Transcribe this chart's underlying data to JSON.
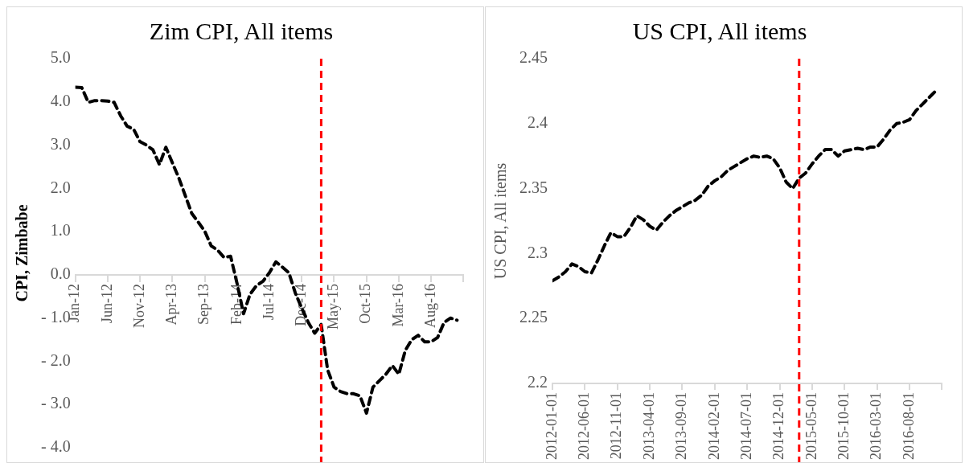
{
  "chart_data": [
    {
      "type": "line",
      "title": "Zim CPI, All items",
      "ylabel": "CPI, Zimbabe",
      "marker": "none",
      "line_style": "dashed",
      "x": [
        "2012-01",
        "2012-02",
        "2012-03",
        "2012-04",
        "2012-05",
        "2012-06",
        "2012-07",
        "2012-08",
        "2012-09",
        "2012-10",
        "2012-11",
        "2012-12",
        "2013-01",
        "2013-02",
        "2013-03",
        "2013-04",
        "2013-05",
        "2013-06",
        "2013-07",
        "2013-08",
        "2013-09",
        "2013-10",
        "2013-11",
        "2013-12",
        "2014-01",
        "2014-02",
        "2014-03",
        "2014-04",
        "2014-05",
        "2014-06",
        "2014-07",
        "2014-08",
        "2014-09",
        "2014-10",
        "2014-11",
        "2014-12",
        "2015-01",
        "2015-02",
        "2015-03",
        "2015-04",
        "2015-05",
        "2015-06",
        "2015-07",
        "2015-08",
        "2015-09",
        "2015-10",
        "2015-11",
        "2015-12",
        "2016-01",
        "2016-02",
        "2016-03",
        "2016-04",
        "2016-05",
        "2016-06",
        "2016-07",
        "2016-08",
        "2016-09",
        "2016-10",
        "2016-11",
        "2016-12"
      ],
      "series": [
        {
          "color": "#000000",
          "values": [
            4.34,
            4.33,
            3.99,
            4.03,
            4.03,
            4.02,
            3.99,
            3.68,
            3.44,
            3.37,
            3.08,
            3.0,
            2.89,
            2.55,
            2.95,
            2.59,
            2.24,
            1.83,
            1.42,
            1.22,
            1.01,
            0.67,
            0.57,
            0.4,
            0.43,
            -0.2,
            -0.9,
            -0.45,
            -0.25,
            -0.15,
            0.05,
            0.3,
            0.18,
            0.05,
            -0.42,
            -0.77,
            -1.1,
            -1.35,
            -1.15,
            -2.2,
            -2.6,
            -2.7,
            -2.75,
            -2.75,
            -2.8,
            -3.2,
            -2.6,
            -2.45,
            -2.3,
            -2.1,
            -2.3,
            -1.75,
            -1.5,
            -1.4,
            -1.55,
            -1.55,
            -1.45,
            -1.1,
            -1.0,
            -1.05
          ]
        }
      ],
      "xlim": [
        "2012-01",
        "2017-01"
      ],
      "xticks": [
        {
          "value": "2012-01",
          "label": "Jan-12"
        },
        {
          "value": "2012-06",
          "label": "Jun-12"
        },
        {
          "value": "2012-11",
          "label": "Nov-12"
        },
        {
          "value": "2013-04",
          "label": "Apr-13"
        },
        {
          "value": "2013-09",
          "label": "Sep-13"
        },
        {
          "value": "2014-02",
          "label": "Feb-14"
        },
        {
          "value": "2014-07",
          "label": "Jul-14"
        },
        {
          "value": "2014-12",
          "label": "Dec-14"
        },
        {
          "value": "2015-05",
          "label": "May-15"
        },
        {
          "value": "2015-10",
          "label": "Oct-15"
        },
        {
          "value": "2016-03",
          "label": "Mar-16"
        },
        {
          "value": "2016-08",
          "label": "Aug-16"
        },
        {
          "value": "2017-01",
          "label": null
        }
      ],
      "ylim": [
        -4,
        5
      ],
      "yticks": [
        {
          "value": 5,
          "label": "5.0"
        },
        {
          "value": 4,
          "label": "4.0"
        },
        {
          "value": 3,
          "label": "3.0"
        },
        {
          "value": 2,
          "label": "2.0"
        },
        {
          "value": 1,
          "label": "1.0"
        },
        {
          "value": 0,
          "label": "0.0"
        },
        {
          "value": -1,
          "label": "- 1.0"
        },
        {
          "value": -2,
          "label": "- 2.0"
        },
        {
          "value": -3,
          "label": "- 3.0"
        },
        {
          "value": -4,
          "label": "- 4.0"
        }
      ],
      "ref_lines": [
        {
          "axis": "x",
          "value": "2015-03",
          "color": "#ff0000",
          "line_style": "dashed"
        }
      ]
    },
    {
      "type": "line",
      "title": "US CPI, All items",
      "ylabel": "US CPI, All items",
      "marker": "none",
      "line_style": "dashed",
      "x": [
        "2012-01-01",
        "2012-02-01",
        "2012-03-01",
        "2012-04-01",
        "2012-05-01",
        "2012-06-01",
        "2012-07-01",
        "2012-08-01",
        "2012-09-01",
        "2012-10-01",
        "2012-11-01",
        "2012-12-01",
        "2013-01-01",
        "2013-02-01",
        "2013-03-01",
        "2013-04-01",
        "2013-05-01",
        "2013-06-01",
        "2013-07-01",
        "2013-08-01",
        "2013-09-01",
        "2013-10-01",
        "2013-11-01",
        "2013-12-01",
        "2014-01-01",
        "2014-02-01",
        "2014-03-01",
        "2014-04-01",
        "2014-05-01",
        "2014-06-01",
        "2014-07-01",
        "2014-08-01",
        "2014-09-01",
        "2014-10-01",
        "2014-11-01",
        "2014-12-01",
        "2015-01-01",
        "2015-02-01",
        "2015-03-01",
        "2015-04-01",
        "2015-05-01",
        "2015-06-01",
        "2015-07-01",
        "2015-08-01",
        "2015-09-01",
        "2015-10-01",
        "2015-11-01",
        "2015-12-01",
        "2016-01-01",
        "2016-02-01",
        "2016-03-01",
        "2016-04-01",
        "2016-05-01",
        "2016-06-01",
        "2016-07-01",
        "2016-08-01",
        "2016-09-01",
        "2016-10-01",
        "2016-11-01",
        "2016-12-01"
      ],
      "series": [
        {
          "color": "#000000",
          "values": [
            2.279,
            2.282,
            2.286,
            2.292,
            2.29,
            2.286,
            2.285,
            2.295,
            2.306,
            2.316,
            2.313,
            2.313,
            2.32,
            2.329,
            2.326,
            2.321,
            2.318,
            2.324,
            2.329,
            2.333,
            2.336,
            2.339,
            2.341,
            2.345,
            2.352,
            2.356,
            2.359,
            2.364,
            2.367,
            2.37,
            2.373,
            2.375,
            2.374,
            2.375,
            2.373,
            2.366,
            2.355,
            2.35,
            2.358,
            2.362,
            2.369,
            2.375,
            2.38,
            2.38,
            2.375,
            2.379,
            2.38,
            2.381,
            2.38,
            2.382,
            2.382,
            2.388,
            2.395,
            2.4,
            2.401,
            2.403,
            2.41,
            2.415,
            2.42,
            2.425
          ]
        }
      ],
      "xlim": [
        "2012-01-01",
        "2017-01-01"
      ],
      "xticks": [
        {
          "value": "2012-01-01",
          "label": "2012-01-01"
        },
        {
          "value": "2012-06-01",
          "label": "2012-06-01"
        },
        {
          "value": "2012-11-01",
          "label": "2012-11-01"
        },
        {
          "value": "2013-04-01",
          "label": "2013-04-01"
        },
        {
          "value": "2013-09-01",
          "label": "2013-09-01"
        },
        {
          "value": "2014-02-01",
          "label": "2014-02-01"
        },
        {
          "value": "2014-07-01",
          "label": "2014-07-01"
        },
        {
          "value": "2014-12-01",
          "label": "2014-12-01"
        },
        {
          "value": "2015-05-01",
          "label": "2015-05-01"
        },
        {
          "value": "2015-10-01",
          "label": "2015-10-01"
        },
        {
          "value": "2016-03-01",
          "label": "2016-03-01"
        },
        {
          "value": "2016-08-01",
          "label": "2016-08-01"
        },
        {
          "value": "2017-01-01",
          "label": null
        }
      ],
      "ylim": [
        2.2,
        2.45
      ],
      "yticks": [
        2.2,
        2.25,
        2.3,
        2.35,
        2.4,
        2.45
      ],
      "ref_lines": [
        {
          "axis": "x",
          "value": "2015-03-01",
          "color": "#ff0000",
          "line_style": "dashed"
        }
      ]
    }
  ]
}
